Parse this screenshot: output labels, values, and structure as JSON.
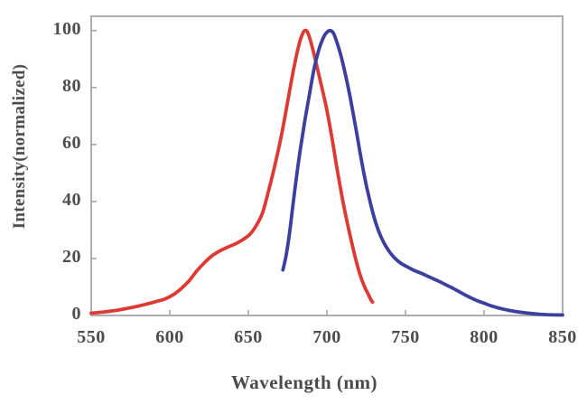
{
  "chart_data": {
    "type": "line",
    "title": "",
    "xlabel": "Wavelength (nm)",
    "ylabel": "Intensity(normalized)",
    "xlim": [
      550,
      850
    ],
    "ylim": [
      0,
      105
    ],
    "x_ticks": [
      550,
      600,
      650,
      700,
      750,
      800,
      850
    ],
    "y_ticks": [
      0,
      20,
      40,
      60,
      80,
      100
    ],
    "grid": false,
    "legend_position": "none",
    "axis_color": "#a6a6a6",
    "text_color": "#4d4d4d",
    "series": [
      {
        "name": "red-curve",
        "color": "#dc3a33",
        "peak_x": 686,
        "peak_y": 100,
        "points": [
          [
            550,
            0.8
          ],
          [
            556,
            1.1
          ],
          [
            562,
            1.5
          ],
          [
            568,
            2.0
          ],
          [
            574,
            2.6
          ],
          [
            580,
            3.3
          ],
          [
            586,
            4.1
          ],
          [
            592,
            5.0
          ],
          [
            597,
            5.8
          ],
          [
            602,
            7.2
          ],
          [
            607,
            9.3
          ],
          [
            612,
            12.0
          ],
          [
            617,
            15.5
          ],
          [
            622,
            18.5
          ],
          [
            627,
            21.0
          ],
          [
            632,
            22.7
          ],
          [
            637,
            24.0
          ],
          [
            642,
            25.2
          ],
          [
            647,
            26.8
          ],
          [
            651,
            28.5
          ],
          [
            655,
            31.5
          ],
          [
            659,
            36.0
          ],
          [
            663,
            44.0
          ],
          [
            667,
            53.0
          ],
          [
            671,
            63.0
          ],
          [
            675,
            75.0
          ],
          [
            679,
            87.0
          ],
          [
            682,
            94.5
          ],
          [
            684,
            98.2
          ],
          [
            686,
            100.0
          ],
          [
            688,
            99.0
          ],
          [
            691,
            93.5
          ],
          [
            694,
            86.5
          ],
          [
            697,
            79.5
          ],
          [
            700,
            72.0
          ],
          [
            703,
            63.0
          ],
          [
            706,
            53.0
          ],
          [
            709,
            43.5
          ],
          [
            712,
            35.0
          ],
          [
            715,
            27.5
          ],
          [
            718,
            20.5
          ],
          [
            721,
            14.5
          ],
          [
            724,
            10.0
          ],
          [
            726,
            7.8
          ],
          [
            728,
            5.5
          ],
          [
            729,
            4.7
          ]
        ]
      },
      {
        "name": "blue-curve",
        "color": "#3b3f9f",
        "peak_x": 702,
        "peak_y": 100,
        "points": [
          [
            672,
            16.0
          ],
          [
            674,
            21.0
          ],
          [
            676,
            28.0
          ],
          [
            678,
            37.0
          ],
          [
            680,
            46.0
          ],
          [
            683,
            58.0
          ],
          [
            686,
            68.5
          ],
          [
            689,
            78.0
          ],
          [
            692,
            87.0
          ],
          [
            695,
            93.5
          ],
          [
            698,
            97.8
          ],
          [
            700,
            99.4
          ],
          [
            702,
            100.0
          ],
          [
            704,
            99.2
          ],
          [
            706,
            96.5
          ],
          [
            709,
            91.0
          ],
          [
            712,
            84.0
          ],
          [
            715,
            76.0
          ],
          [
            718,
            67.0
          ],
          [
            721,
            57.5
          ],
          [
            724,
            48.5
          ],
          [
            727,
            41.0
          ],
          [
            730,
            34.5
          ],
          [
            733,
            29.5
          ],
          [
            736,
            25.8
          ],
          [
            739,
            23.0
          ],
          [
            742,
            20.8
          ],
          [
            745,
            19.2
          ],
          [
            748,
            18.0
          ],
          [
            752,
            16.8
          ],
          [
            756,
            15.7
          ],
          [
            760,
            14.8
          ],
          [
            764,
            13.8
          ],
          [
            768,
            12.8
          ],
          [
            772,
            11.8
          ],
          [
            776,
            10.7
          ],
          [
            780,
            9.6
          ],
          [
            784,
            8.4
          ],
          [
            788,
            7.2
          ],
          [
            792,
            6.1
          ],
          [
            796,
            5.1
          ],
          [
            800,
            4.3
          ],
          [
            805,
            3.3
          ],
          [
            810,
            2.5
          ],
          [
            815,
            1.9
          ],
          [
            820,
            1.4
          ],
          [
            825,
            1.0
          ],
          [
            830,
            0.7
          ],
          [
            835,
            0.45
          ],
          [
            840,
            0.3
          ],
          [
            845,
            0.2
          ],
          [
            850,
            0.15
          ]
        ]
      }
    ]
  }
}
